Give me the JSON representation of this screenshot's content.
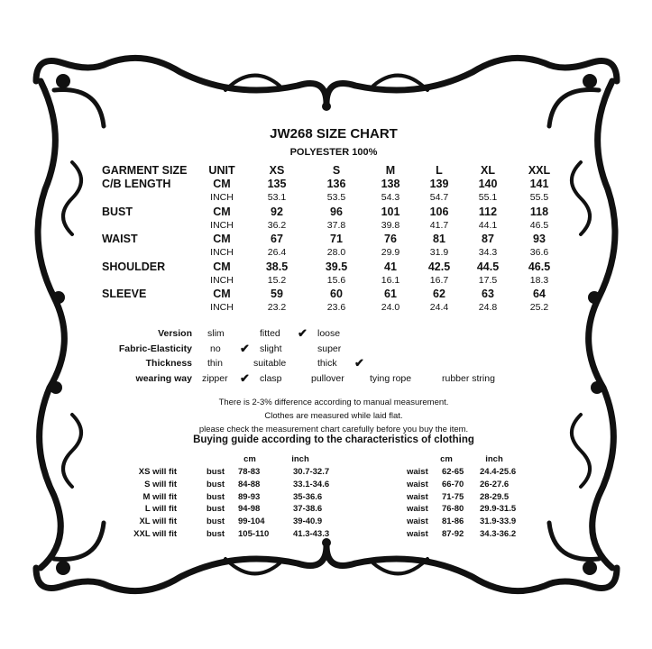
{
  "title": "JW268 SIZE CHART",
  "subtitle": "POLYESTER 100%",
  "size_table": {
    "header": {
      "label": "GARMENT SIZE",
      "unit": "UNIT",
      "sizes": [
        "XS",
        "S",
        "M",
        "L",
        "XL",
        "XXL"
      ]
    },
    "rows": [
      {
        "label": "C/B LENGTH",
        "cm_unit": "CM",
        "cm": [
          "135",
          "136",
          "138",
          "139",
          "140",
          "141"
        ],
        "inch_unit": "INCH",
        "inch": [
          "53.1",
          "53.5",
          "54.3",
          "54.7",
          "55.1",
          "55.5"
        ]
      },
      {
        "label": "BUST",
        "cm_unit": "CM",
        "cm": [
          "92",
          "96",
          "101",
          "106",
          "112",
          "118"
        ],
        "inch_unit": "INCH",
        "inch": [
          "36.2",
          "37.8",
          "39.8",
          "41.7",
          "44.1",
          "46.5"
        ]
      },
      {
        "label": "WAIST",
        "cm_unit": "CM",
        "cm": [
          "67",
          "71",
          "76",
          "81",
          "87",
          "93"
        ],
        "inch_unit": "INCH",
        "inch": [
          "26.4",
          "28.0",
          "29.9",
          "31.9",
          "34.3",
          "36.6"
        ]
      },
      {
        "label": "SHOULDER",
        "cm_unit": "CM",
        "cm": [
          "38.5",
          "39.5",
          "41",
          "42.5",
          "44.5",
          "46.5"
        ],
        "inch_unit": "INCH",
        "inch": [
          "15.2",
          "15.6",
          "16.1",
          "16.7",
          "17.5",
          "18.3"
        ]
      },
      {
        "label": "SLEEVE",
        "cm_unit": "CM",
        "cm": [
          "59",
          "60",
          "61",
          "62",
          "63",
          "64"
        ],
        "inch_unit": "INCH",
        "inch": [
          "23.2",
          "23.6",
          "24.0",
          "24.4",
          "24.8",
          "25.2"
        ]
      }
    ]
  },
  "characteristics": [
    {
      "label": "Version",
      "options": [
        "slim",
        "fitted",
        "loose"
      ],
      "selected": "fitted"
    },
    {
      "label": "Fabric-Elasticity",
      "options": [
        "no",
        "slight",
        "super"
      ],
      "selected": "no"
    },
    {
      "label": "Thickness",
      "options": [
        "thin",
        "suitable",
        "thick"
      ],
      "selected": "thick"
    },
    {
      "label": "wearing way",
      "options": [
        "zipper",
        "clasp",
        "pullover",
        "tying rope",
        "rubber string"
      ],
      "selected": "zipper"
    }
  ],
  "check_icon": "check-icon",
  "notes": [
    "There is 2-3% difference according to manual measurement.",
    "Clothes are measured while laid flat.",
    "please check the measurement chart carefully before you buy the item."
  ],
  "buying_guide": {
    "title": "Buying guide according to the characteristics of clothing",
    "cm_header": "cm",
    "inch_header": "inch",
    "rows": [
      {
        "label": "XS will  fit",
        "bust": "bust",
        "bust_cm": "78-83",
        "bust_inch": "30.7-32.7",
        "waist": "waist",
        "waist_cm": "62-65",
        "waist_inch": "24.4-25.6"
      },
      {
        "label": "S will  fit",
        "bust": "bust",
        "bust_cm": "84-88",
        "bust_inch": "33.1-34.6",
        "waist": "waist",
        "waist_cm": "66-70",
        "waist_inch": "26-27.6"
      },
      {
        "label": "M will fit",
        "bust": "bust",
        "bust_cm": "89-93",
        "bust_inch": "35-36.6",
        "waist": "waist",
        "waist_cm": "71-75",
        "waist_inch": "28-29.5"
      },
      {
        "label": "L will fit",
        "bust": "bust",
        "bust_cm": "94-98",
        "bust_inch": "37-38.6",
        "waist": "waist",
        "waist_cm": "76-80",
        "waist_inch": "29.9-31.5"
      },
      {
        "label": "XL will fit",
        "bust": "bust",
        "bust_cm": "99-104",
        "bust_inch": "39-40.9",
        "waist": "waist",
        "waist_cm": "81-86",
        "waist_inch": "31.9-33.9"
      },
      {
        "label": "XXL will fit",
        "bust": "bust",
        "bust_cm": "105-110",
        "bust_inch": "41.3-43.3",
        "waist": "waist",
        "waist_cm": "87-92",
        "waist_inch": "34.3-36.2"
      }
    ]
  }
}
